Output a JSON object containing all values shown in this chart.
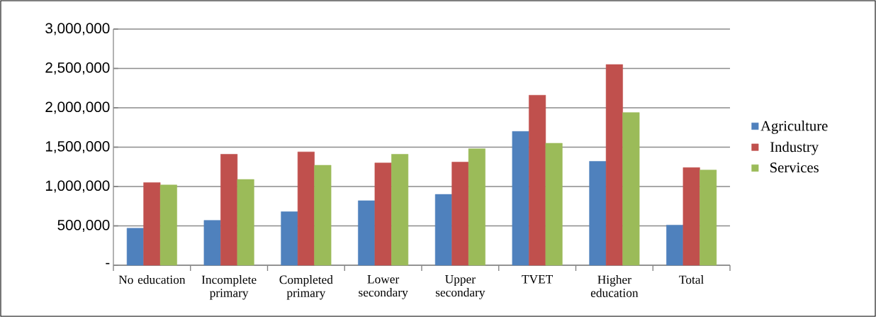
{
  "chart_data": {
    "type": "bar",
    "categories": [
      "No education",
      "Incomplete primary",
      "Completed primary",
      "Lower secondary",
      "Upper secondary",
      "TVET",
      "Higher education",
      "Total"
    ],
    "series": [
      {
        "name": "Agriculture",
        "color": "#4f81bd",
        "values": [
          470000,
          570000,
          680000,
          820000,
          900000,
          1700000,
          1320000,
          510000
        ]
      },
      {
        "name": "Industry",
        "color": "#c0504d",
        "values": [
          1050000,
          1410000,
          1440000,
          1300000,
          1310000,
          2160000,
          2550000,
          1240000
        ]
      },
      {
        "name": "Services",
        "color": "#9bbb59",
        "values": [
          1020000,
          1090000,
          1270000,
          1410000,
          1480000,
          1550000,
          1940000,
          1210000
        ]
      }
    ],
    "ylim": [
      0,
      3000000
    ],
    "yticks": [
      {
        "value": 0,
        "label": "-"
      },
      {
        "value": 500000,
        "label": "500,000"
      },
      {
        "value": 1000000,
        "label": "1,000,000"
      },
      {
        "value": 1500000,
        "label": "1,500,000"
      },
      {
        "value": 2000000,
        "label": "2,000,000"
      },
      {
        "value": 2500000,
        "label": "2,500,000"
      },
      {
        "value": 3000000,
        "label": "3,000,000"
      }
    ],
    "grid": "y",
    "legend": "right"
  }
}
